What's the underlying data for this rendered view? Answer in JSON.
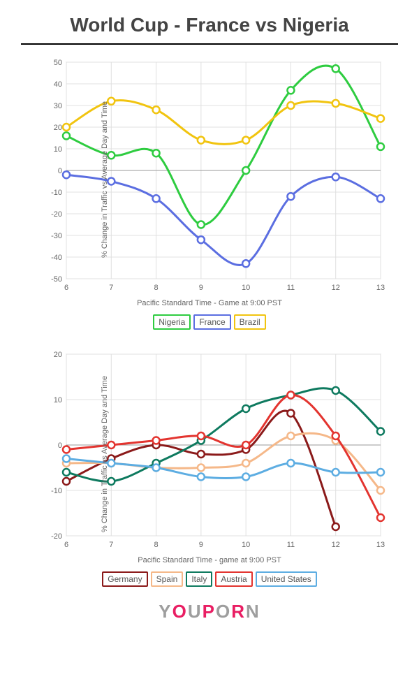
{
  "title": "World Cup - France vs Nigeria",
  "chart1": {
    "type": "line",
    "ylabel": "% Change in Traffic vs Average Day and Time",
    "xlabel": "Pacific Standard Time - Game at 9:00 PST",
    "ylim": [
      -50,
      50
    ],
    "yticks": [
      -50,
      -40,
      -30,
      -20,
      -10,
      0,
      10,
      20,
      30,
      40,
      50
    ],
    "xticks": [
      6,
      7,
      8,
      9,
      10,
      11,
      12,
      13
    ],
    "background_color": "#ffffff",
    "grid_color": "#e0e0e0",
    "axis_color": "#bbbbbb",
    "line_width": 3,
    "marker_radius": 5,
    "series": [
      {
        "name": "Nigeria",
        "color": "#2ecc40",
        "x": [
          6,
          7,
          8,
          9,
          10,
          11,
          12,
          13
        ],
        "y": [
          16,
          7,
          8,
          -25,
          0,
          37,
          47,
          11
        ]
      },
      {
        "name": "France",
        "color": "#5b6ee1",
        "x": [
          6,
          7,
          8,
          9,
          10,
          11,
          12,
          13
        ],
        "y": [
          -2,
          -5,
          -13,
          -32,
          -43,
          -12,
          -3,
          -13
        ]
      },
      {
        "name": "Brazil",
        "color": "#f1c40f",
        "x": [
          6,
          7,
          8,
          9,
          10,
          11,
          12,
          13
        ],
        "y": [
          20,
          32,
          28,
          14,
          14,
          30,
          31,
          24
        ]
      }
    ]
  },
  "chart2": {
    "type": "line",
    "ylabel": "% Change in Traffic vs Average Day and Time",
    "xlabel": "Pacific Standard Time - game at 9:00 PST",
    "ylim": [
      -20,
      20
    ],
    "yticks": [
      -20,
      -10,
      0,
      10,
      20
    ],
    "xticks": [
      6,
      7,
      8,
      9,
      10,
      11,
      12,
      13
    ],
    "background_color": "#ffffff",
    "grid_color": "#e0e0e0",
    "axis_color": "#bbbbbb",
    "line_width": 3,
    "marker_radius": 5,
    "series": [
      {
        "name": "Germany",
        "color": "#8b1a1a",
        "x": [
          6,
          7,
          8,
          9,
          10,
          11,
          12,
          13
        ],
        "y": [
          -8,
          -3,
          0,
          -2,
          -1,
          7,
          -18,
          null
        ]
      },
      {
        "name": "Spain",
        "color": "#f5b889",
        "x": [
          6,
          7,
          8,
          9,
          10,
          11,
          12,
          13
        ],
        "y": [
          -4,
          -4,
          -5,
          -5,
          -4,
          2,
          1,
          -10
        ]
      },
      {
        "name": "Italy",
        "color": "#0e7a5f",
        "x": [
          6,
          7,
          8,
          9,
          10,
          11,
          12,
          13
        ],
        "y": [
          -6,
          -8,
          -4,
          1,
          8,
          11,
          12,
          3
        ]
      },
      {
        "name": "Austria",
        "color": "#e3342f",
        "x": [
          6,
          7,
          8,
          9,
          10,
          11,
          12,
          13
        ],
        "y": [
          -1,
          0,
          1,
          2,
          0,
          11,
          2,
          -16
        ]
      },
      {
        "name": "United States",
        "color": "#5dade2",
        "x": [
          6,
          7,
          8,
          9,
          10,
          11,
          12,
          13
        ],
        "y": [
          -3,
          -4,
          -5,
          -7,
          -7,
          -4,
          -6,
          -6
        ]
      }
    ]
  },
  "footer_logo_text": "YOUPORN"
}
